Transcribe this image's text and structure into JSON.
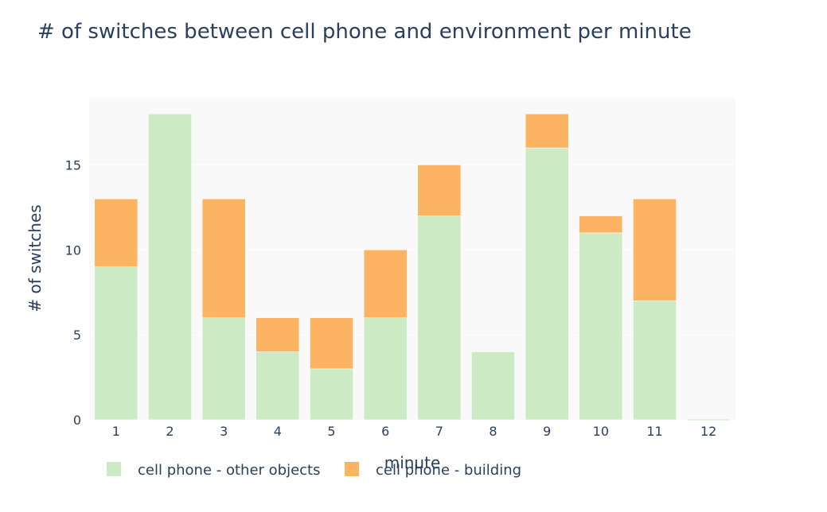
{
  "chart_data": {
    "type": "bar",
    "barmode": "stack",
    "title": "# of switches between cell phone and environment per minute",
    "xlabel": "minute",
    "ylabel": "# of switches",
    "categories": [
      "1",
      "2",
      "3",
      "4",
      "5",
      "6",
      "7",
      "8",
      "9",
      "10",
      "11",
      "12"
    ],
    "ylim": [
      0,
      18.95
    ],
    "yticks": [
      0,
      5,
      10,
      15
    ],
    "grid": true,
    "legend_position": "bottom-left",
    "series": [
      {
        "name": "cell phone - other objects",
        "color": "#ccebc5",
        "values": [
          9,
          18,
          6,
          4,
          3,
          6,
          12,
          4,
          16,
          11,
          7,
          0
        ]
      },
      {
        "name": "cell phone - building",
        "color": "#fdb462",
        "values": [
          4,
          0,
          7,
          2,
          3,
          4,
          3,
          0,
          2,
          1,
          6,
          0
        ]
      }
    ],
    "plot_bgcolor": "#f9f9f9"
  }
}
